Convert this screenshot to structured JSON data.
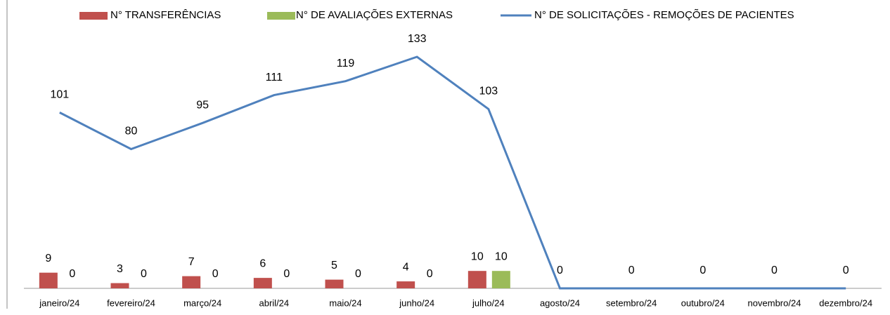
{
  "chart_data": {
    "type": "bar+line",
    "categories": [
      "janeiro/24",
      "fevereiro/24",
      "março/24",
      "abril/24",
      "maio/24",
      "junho/24",
      "julho/24",
      "agosto/24",
      "setembro/24",
      "outubro/24",
      "novembro/24",
      "dezembro/24"
    ],
    "series": [
      {
        "name": "N° TRANSFERÊNCIAS",
        "type": "bar",
        "color": "#c0504d",
        "values": [
          9,
          3,
          7,
          6,
          5,
          4,
          10,
          null,
          null,
          null,
          null,
          null
        ]
      },
      {
        "name": "N° DE AVALIAÇÕES EXTERNAS",
        "type": "bar",
        "color": "#9bbb59",
        "values": [
          0,
          0,
          0,
          0,
          0,
          0,
          10,
          null,
          null,
          null,
          null,
          null
        ]
      },
      {
        "name": "N° DE SOLICITAÇÕES - REMOÇÕES DE PACIENTES",
        "type": "line",
        "color": "#4f81bd",
        "values": [
          101,
          80,
          95,
          111,
          119,
          133,
          103,
          0,
          0,
          0,
          0,
          0
        ]
      }
    ],
    "ylim": [
      0,
      160
    ],
    "legend": "top"
  }
}
